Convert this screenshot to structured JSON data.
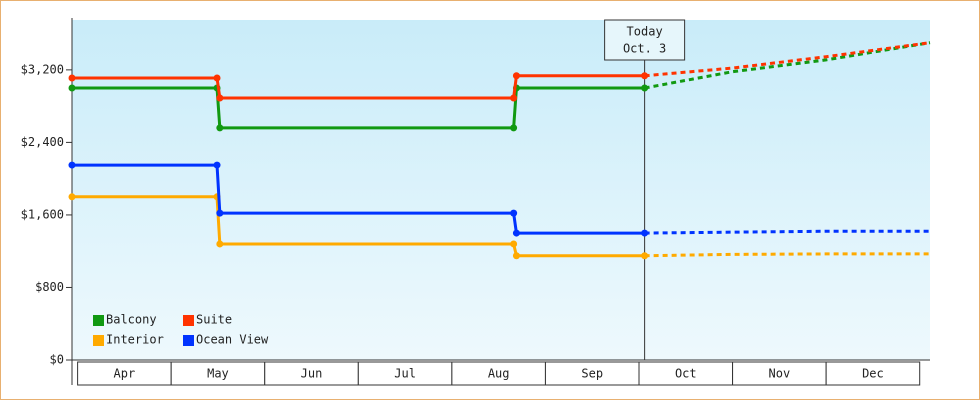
{
  "chart_data": {
    "type": "line",
    "x": [
      -0.06,
      1.49,
      1.52,
      4.66,
      4.69,
      6.06,
      7,
      8,
      9.11
    ],
    "xlim": [
      -0.06,
      9.11
    ],
    "xticks": [
      {
        "value": 0.5,
        "label": "Apr"
      },
      {
        "value": 1.5,
        "label": "May"
      },
      {
        "value": 2.5,
        "label": "Jun"
      },
      {
        "value": 3.5,
        "label": "Jul"
      },
      {
        "value": 4.5,
        "label": "Aug"
      },
      {
        "value": 5.5,
        "label": "Sep"
      },
      {
        "value": 6.5,
        "label": "Oct"
      },
      {
        "value": 7.5,
        "label": "Nov"
      },
      {
        "value": 8.5,
        "label": "Dec"
      }
    ],
    "ylim": [
      0,
      3750
    ],
    "yticks": [
      {
        "value": 0,
        "label": "$0"
      },
      {
        "value": 800,
        "label": "$800"
      },
      {
        "value": 1600,
        "label": "$1,600"
      },
      {
        "value": 2400,
        "label": "$2,400"
      },
      {
        "value": 3200,
        "label": "$3,200"
      }
    ],
    "today_x": 6.06,
    "today_label": "Today",
    "today_date": "Oct. 3",
    "series": [
      {
        "name": "Balcony",
        "color": "#119911",
        "values": [
          3000,
          3000,
          2560,
          2560,
          3000,
          3000,
          3180,
          3310,
          3500
        ]
      },
      {
        "name": "Suite",
        "color": "#ff3300",
        "values": [
          3110,
          3110,
          2890,
          2890,
          3135,
          3135,
          3220,
          3345,
          3500
        ]
      },
      {
        "name": "Interior",
        "color": "#ffaa00",
        "values": [
          1800,
          1800,
          1280,
          1280,
          1150,
          1150,
          1165,
          1170,
          1170
        ]
      },
      {
        "name": "Ocean View",
        "color": "#0033ff",
        "values": [
          2150,
          2150,
          1620,
          1620,
          1400,
          1400,
          1410,
          1420,
          1420
        ]
      }
    ],
    "legend": "bottom-left"
  }
}
